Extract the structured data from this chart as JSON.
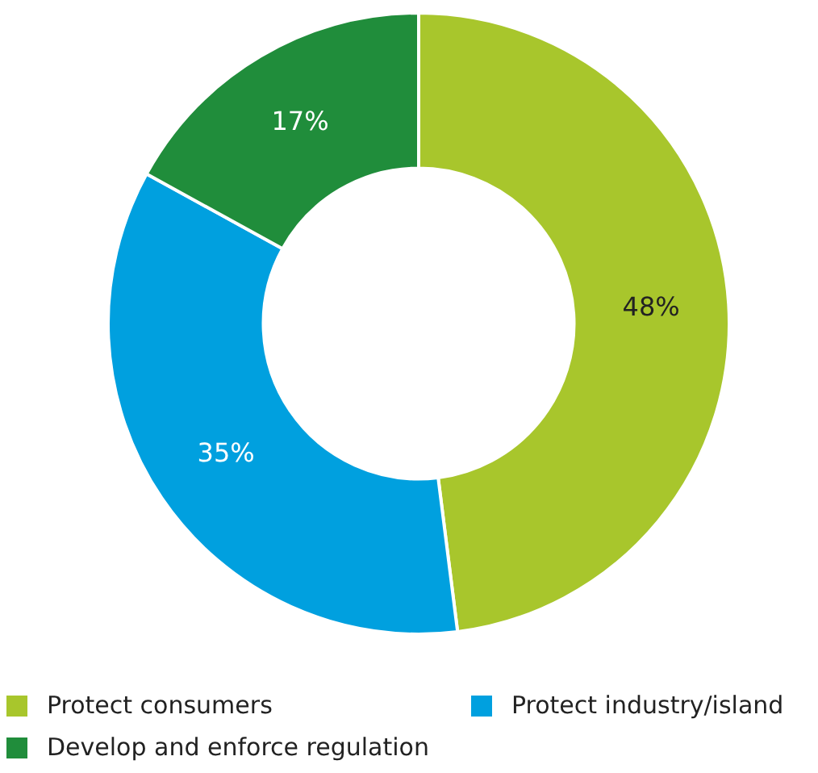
{
  "chart_data": {
    "type": "donut",
    "categories": [
      "Protect consumers",
      "Protect industry/island",
      "Develop and enforce regulation"
    ],
    "values": [
      48,
      35,
      17
    ],
    "colors": [
      "#a8c62c",
      "#00a0df",
      "#208d3b"
    ],
    "value_labels": [
      "48%",
      "35%",
      "17%"
    ],
    "legend": "bottom"
  }
}
